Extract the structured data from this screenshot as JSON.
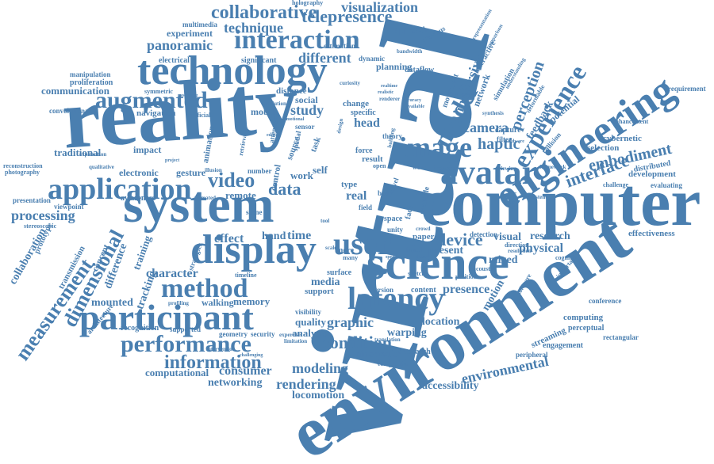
{
  "cloud": {
    "accent_color": "#4a7fb0",
    "words": {
      "virtual": "virtual",
      "reality": "reality",
      "computer": "computer",
      "environment": "environment",
      "system": "system",
      "technology": "technology",
      "science": "science",
      "engineering": "engineering",
      "display": "display",
      "participant": "participant",
      "application": "application",
      "augmented": "augmented",
      "avatar": "avatar",
      "image": "image",
      "latency": "latency",
      "method": "method",
      "performance": "performance",
      "user": "user",
      "interaction": "interaction",
      "experience": "experience",
      "model": "model",
      "dimensional": "dimensional",
      "measurement": "measurement",
      "information": "information",
      "collaborative": "collaborative",
      "telepresence": "telepresence",
      "visualization": "visualization",
      "technique": "technique",
      "panoramic": "panoramic",
      "experiment": "experiment",
      "communication": "communication",
      "processing": "processing",
      "video": "video",
      "data": "data",
      "device": "device",
      "interface": "interface",
      "embodiment": "embodiment",
      "haptic": "haptic",
      "camera": "camera",
      "perception": "perception",
      "immersive": "immersive",
      "different": "different",
      "presence": "presence",
      "condition": "condition",
      "graphic": "graphic",
      "character": "character",
      "environmental": "environmental",
      "rendering": "rendering",
      "modeling": "modeling",
      "consumer": "consumer",
      "networking": "networking",
      "locomotion": "locomotion",
      "accessibility": "accessibility",
      "computational": "computational",
      "research": "research",
      "physical": "physical",
      "mixed": "mixed",
      "visual": "visual",
      "motion": "motion",
      "time": "time",
      "effect": "effect",
      "hand": "hand",
      "present": "present",
      "location": "location",
      "warping": "warping",
      "cinematic": "cinematic",
      "quality": "quality",
      "analysis": "analysis",
      "media": "media",
      "support": "support",
      "memory": "memory",
      "walking": "walking",
      "tracking": "tracking",
      "mounted": "mounted",
      "difference": "difference",
      "training": "training",
      "collaboration": "collaboration",
      "traditional": "traditional",
      "electronic": "electronic",
      "gesture": "gesture",
      "remote": "remote",
      "work": "work",
      "self": "self",
      "real": "real",
      "head": "head",
      "study": "study",
      "social": "social",
      "mobile": "mobile",
      "navigation": "navigation",
      "impact": "impact",
      "animation": "animation",
      "feedback": "feedback",
      "potential": "potential",
      "cybernetic": "cybernetic",
      "selection": "selection",
      "development": "development",
      "effectiveness": "effectiveness",
      "computing": "computing",
      "perceptual": "perceptual",
      "engagement": "engagement",
      "streaming": "streaming",
      "conference": "conference",
      "transmission": "transmission",
      "concept": "concept",
      "architecture": "architecture",
      "recognition": "recognition",
      "supported": "supported",
      "geometry": "geometry",
      "security": "security",
      "electrical": "electrical",
      "manipulation": "manipulation",
      "proliferation": "proliferation",
      "convolutional": "convolutional",
      "multimedia": "multimedia",
      "estimation": "estimation",
      "dynamic": "dynamic",
      "significant": "significant",
      "planning": "planning",
      "dataflow": "dataflow",
      "approach": "approach",
      "previous": "previous",
      "interactive": "interactive",
      "simulation": "simulation",
      "network": "network",
      "capture": "capture",
      "filter": "filter",
      "specific": "specific",
      "change": "change",
      "distance": "distance",
      "force": "force",
      "result": "result",
      "type": "type",
      "body": "body",
      "level": "level",
      "scene": "scene",
      "number": "number",
      "awareness": "awareness",
      "presentation": "presentation",
      "viewpoint": "viewpoint",
      "stereoscopic": "stereoscopic",
      "prototype": "prototype",
      "reconstruction": "reconstruction",
      "photography": "photography",
      "exploration": "exploration",
      "symmetric": "symmetric",
      "artificial": "artificial",
      "holography": "holography",
      "bandwidth": "bandwidth",
      "requirement": "requirement",
      "collision": "collision",
      "enhancement": "enhancement",
      "distributed": "distributed",
      "evaluating": "evaluating",
      "challenge": "challenge",
      "framework": "framework",
      "viewing": "viewing",
      "rectangular": "rectangular",
      "peripheral": "peripheral",
      "software": "software",
      "important": "important",
      "cognitive": "cognitive",
      "position": "position",
      "detection": "detection",
      "direction": "direction",
      "resolution": "resolution",
      "acoustic": "acoustic",
      "paper": "paper",
      "sketch": "sketch",
      "version": "version",
      "content": "content",
      "surface": "surface",
      "visibility": "visibility",
      "expertise": "expertise",
      "limitation": "limitation",
      "translation": "translation",
      "ereserch": "eresearch",
      "completion": "completion",
      "timeline": "timeline",
      "intervention": "intervention",
      "challenging": "challenging",
      "profiling": "profiling",
      "strategies": "strategies",
      "illusion": "illusion",
      "animated": "animated",
      "space": "space",
      "control": "control",
      "source": "source",
      "unity": "unity",
      "multiple": "multiple",
      "face": "face",
      "theory": "theory",
      "world": "world",
      "transfer": "transfer",
      "open": "open",
      "more": "more",
      "many": "many",
      "scale": "scale",
      "based": "based",
      "crowd": "crowd",
      "movement": "movement",
      "pollution": "pollution",
      "curiosity": "curiosity",
      "attention": "attention",
      "retrieval": "retrieval",
      "sensor": "sensor",
      "spatial": "spatial",
      "task": "task",
      "synthesis": "synthesis",
      "understanding": "understanding",
      "representation": "representation",
      "deformable": "deformable",
      "comparison": "comparison",
      "hardware": "hardware",
      "available": "available",
      "accuracy": "accuracy",
      "realistic": "realistic",
      "realtime": "realtime",
      "renderer": "renderer",
      "building": "building",
      "reach": "reach",
      "consistent": "consistent",
      "component": "component",
      "experimental": "experimental",
      "design": "design",
      "emotional": "emotional",
      "tool": "tool",
      "modeling2": "modelling",
      "editing": "editing",
      "qualitative": "qualitative",
      "project": "project",
      "field": "field",
      "shared": "shared",
      "speed": "speed"
    }
  }
}
